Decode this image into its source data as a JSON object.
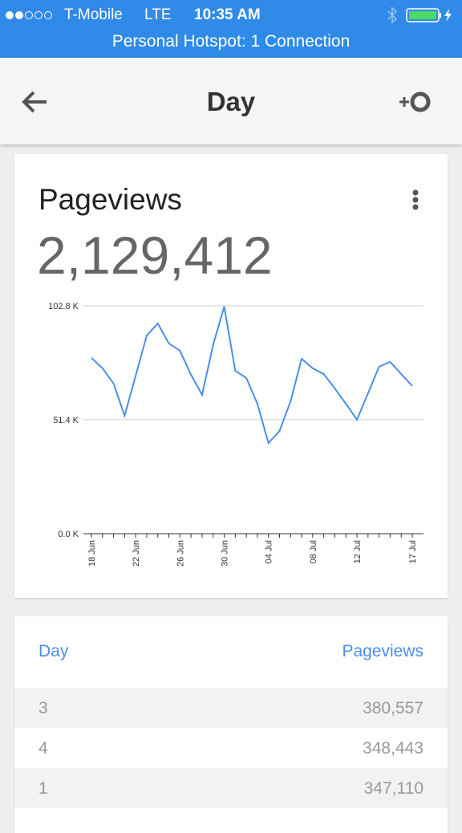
{
  "status_bar": {
    "carrier": "T-Mobile",
    "network": "LTE",
    "time": "10:35 AM",
    "hotspot": "Personal Hotspot: 1 Connection"
  },
  "header": {
    "title": "Day"
  },
  "card": {
    "title": "Pageviews",
    "total": "2,129,412"
  },
  "chart_data": {
    "type": "line",
    "categories": [
      "18 Jun",
      null,
      null,
      null,
      "22 Jun",
      null,
      null,
      null,
      "26 Jun",
      null,
      null,
      null,
      "30 Jun",
      null,
      null,
      null,
      "04 Jul",
      null,
      null,
      null,
      "08 Jul",
      null,
      null,
      null,
      "12 Jul",
      null,
      null,
      null,
      null,
      "17 Jul"
    ],
    "values": [
      79300,
      74600,
      67700,
      53200,
      71300,
      89400,
      94800,
      85800,
      82500,
      71700,
      62600,
      85100,
      102400,
      73500,
      70200,
      58600,
      40900,
      46300,
      59700,
      78900,
      74600,
      72000,
      65500,
      58600,
      51400,
      63300,
      75300,
      77500,
      72000,
      66600
    ],
    "color": "#4a8fe7",
    "ylim": [
      0,
      102800
    ],
    "yticks": [
      {
        "value": 0,
        "label": "0.0 K"
      },
      {
        "value": 51400,
        "label": "51.4 K"
      },
      {
        "value": 102800,
        "label": "102.8 K"
      }
    ],
    "grid": true
  },
  "table": {
    "columns": [
      "Day",
      "Pageviews"
    ],
    "rows": [
      [
        "3",
        "380,557"
      ],
      [
        "4",
        "348,443"
      ],
      [
        "1",
        "347,110"
      ]
    ]
  }
}
